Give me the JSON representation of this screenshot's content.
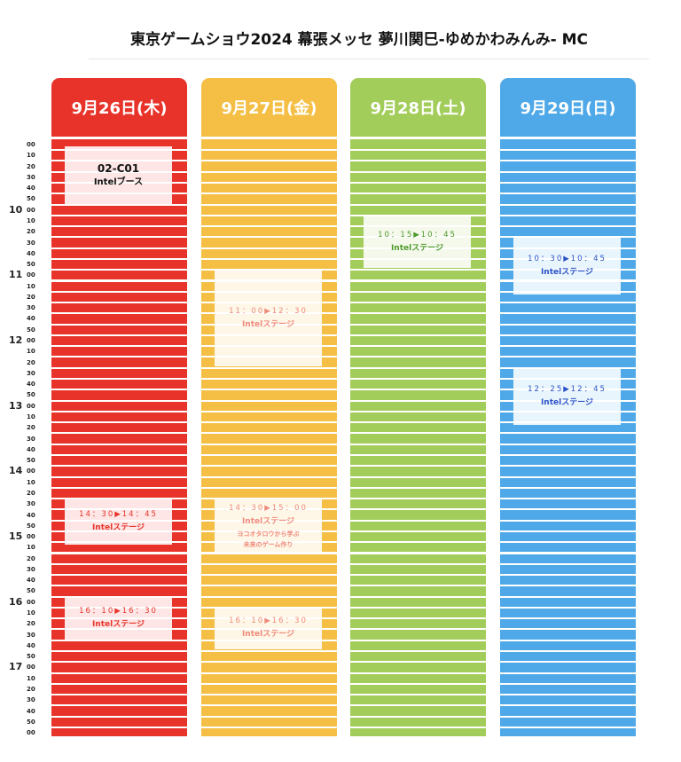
{
  "title": "東京ゲームショウ2024 幕張メッセ 夢川関巳-ゆめかわみんみ- MC",
  "days": [
    {
      "label": "9月26日(木)",
      "color": "#e8332a",
      "events": [
        {
          "lines": [
            "02-C01",
            "Intelブース"
          ]
        },
        {
          "lines": [
            "14：30▶14：45",
            "Intelステージ"
          ]
        },
        {
          "lines": [
            "16：10▶16：30",
            "Intelステージ"
          ]
        }
      ]
    },
    {
      "label": "9月27日(金)",
      "color": "#f4bf44",
      "events": [
        {
          "lines": [
            "11：00▶12：30",
            "Intelステージ"
          ]
        },
        {
          "lines": [
            "14：30▶15：00",
            "Intelステージ",
            "ヨコオタロウから学ぶ",
            "未来のゲーム作り"
          ]
        },
        {
          "lines": [
            "16：10▶16：30",
            "Intelステージ"
          ]
        }
      ]
    },
    {
      "label": "9月28日(土)",
      "color": "#a3cd5b",
      "events": [
        {
          "lines": [
            "10：15▶10：45",
            "Intelステージ"
          ]
        }
      ]
    },
    {
      "label": "9月29日(日)",
      "color": "#4fa9e8",
      "events": [
        {
          "lines": [
            "10：30▶10：45",
            "Intelステージ"
          ]
        },
        {
          "lines": [
            "12：25▶12：45",
            "Intelステージ"
          ]
        }
      ]
    }
  ],
  "time_rows": [
    {
      "minute": "00"
    },
    {
      "minute": "10"
    },
    {
      "minute": "20"
    },
    {
      "minute": "30"
    },
    {
      "minute": "40"
    },
    {
      "minute": "50"
    },
    {
      "hour": "10",
      "minute": "00"
    },
    {
      "minute": "10"
    },
    {
      "minute": "20"
    },
    {
      "minute": "30"
    },
    {
      "minute": "40"
    },
    {
      "minute": "50"
    },
    {
      "hour": "11",
      "minute": "00"
    },
    {
      "minute": "10"
    },
    {
      "minute": "20"
    },
    {
      "minute": "30"
    },
    {
      "minute": "40"
    },
    {
      "minute": "50"
    },
    {
      "hour": "12",
      "minute": "00"
    },
    {
      "minute": "10"
    },
    {
      "minute": "20"
    },
    {
      "minute": "30"
    },
    {
      "minute": "40"
    },
    {
      "minute": "50"
    },
    {
      "hour": "13",
      "minute": "00"
    },
    {
      "minute": "10"
    },
    {
      "minute": "20"
    },
    {
      "minute": "30"
    },
    {
      "minute": "40"
    },
    {
      "minute": "50"
    },
    {
      "hour": "14",
      "minute": "00"
    },
    {
      "minute": "10"
    },
    {
      "minute": "20"
    },
    {
      "minute": "30"
    },
    {
      "minute": "40"
    },
    {
      "minute": "50"
    },
    {
      "hour": "15",
      "minute": "00"
    },
    {
      "minute": "10"
    },
    {
      "minute": "20"
    },
    {
      "minute": "30"
    },
    {
      "minute": "40"
    },
    {
      "minute": "50"
    },
    {
      "hour": "16",
      "minute": "00"
    },
    {
      "minute": "10"
    },
    {
      "minute": "20"
    },
    {
      "minute": "30"
    },
    {
      "minute": "40"
    },
    {
      "minute": "50"
    },
    {
      "hour": "17",
      "minute": "00"
    },
    {
      "minute": "10"
    },
    {
      "minute": "20"
    },
    {
      "minute": "30"
    },
    {
      "minute": "40"
    },
    {
      "minute": "50"
    },
    {
      "minute": "00"
    }
  ]
}
